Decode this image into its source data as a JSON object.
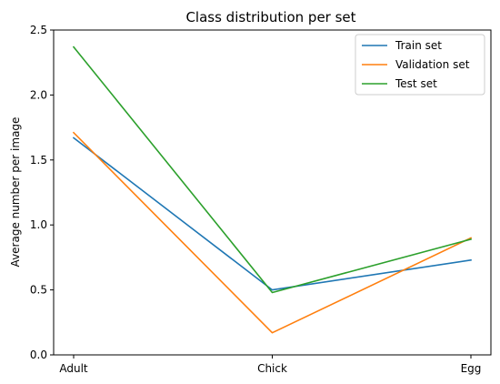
{
  "chart_data": {
    "type": "line",
    "title": "Class distribution per set",
    "xlabel": "",
    "ylabel": "Average number per image",
    "categories": [
      "Adult",
      "Chick",
      "Egg"
    ],
    "series": [
      {
        "name": "Train set",
        "color": "#1f77b4",
        "values": [
          1.67,
          0.5,
          0.73
        ]
      },
      {
        "name": "Validation set",
        "color": "#ff7f0e",
        "values": [
          1.71,
          0.17,
          0.9
        ]
      },
      {
        "name": "Test set",
        "color": "#2ca02c",
        "values": [
          2.37,
          0.48,
          0.89
        ]
      }
    ],
    "ylim": [
      0,
      2.5
    ],
    "yticks": [
      "0.0",
      "0.5",
      "1.0",
      "1.5",
      "2.0",
      "2.5"
    ],
    "grid": false,
    "legend_position": "top-right"
  }
}
